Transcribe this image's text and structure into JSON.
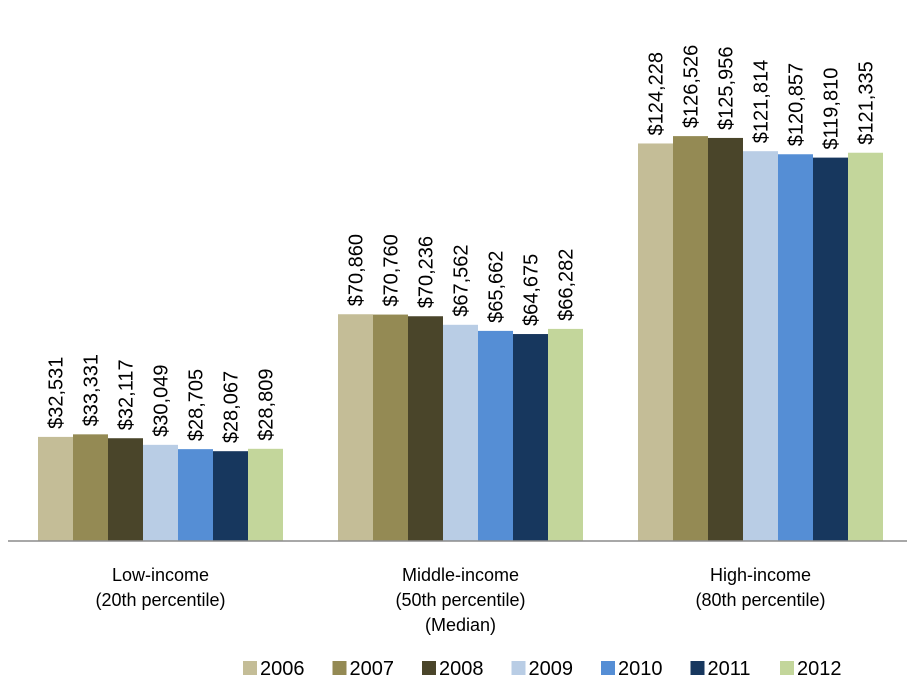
{
  "chart_data": {
    "type": "bar",
    "title": "",
    "xlabel": "",
    "ylabel": "",
    "ylim": [
      0,
      140000
    ],
    "grid": false,
    "legend_position": "bottom",
    "categories": [
      [
        "Low-income",
        "(20th percentile)"
      ],
      [
        "Middle-income",
        "(50th percentile)",
        "(Median)"
      ],
      [
        "High-income",
        "(80th percentile)"
      ]
    ],
    "series": [
      {
        "name": "2006",
        "color": "#c4bd97",
        "values": [
          32531,
          70860,
          124228
        ],
        "labels": [
          "$32,531",
          "$70,860",
          "$124,228"
        ]
      },
      {
        "name": "2007",
        "color": "#948a54",
        "values": [
          33331,
          70760,
          126526
        ],
        "labels": [
          "$33,331",
          "$70,760",
          "$126,526"
        ]
      },
      {
        "name": "2008",
        "color": "#4a452a",
        "values": [
          32117,
          70236,
          125956
        ],
        "labels": [
          "$32,117",
          "$70,236",
          "$125,956"
        ]
      },
      {
        "name": "2009",
        "color": "#b9cde5",
        "values": [
          30049,
          67562,
          121814
        ],
        "labels": [
          "$30,049",
          "$67,562",
          "$121,814"
        ]
      },
      {
        "name": "2010",
        "color": "#558ed5",
        "values": [
          28705,
          65662,
          120857
        ],
        "labels": [
          "$28,705",
          "$65,662",
          "$120,857"
        ]
      },
      {
        "name": "2011",
        "color": "#17375e",
        "values": [
          28067,
          64675,
          119810
        ],
        "labels": [
          "$28,067",
          "$64,675",
          "$119,810"
        ]
      },
      {
        "name": "2012",
        "color": "#c3d69b",
        "values": [
          28809,
          66282,
          121335
        ],
        "labels": [
          "$28,809",
          "$66,282",
          "$121,335"
        ]
      }
    ]
  }
}
